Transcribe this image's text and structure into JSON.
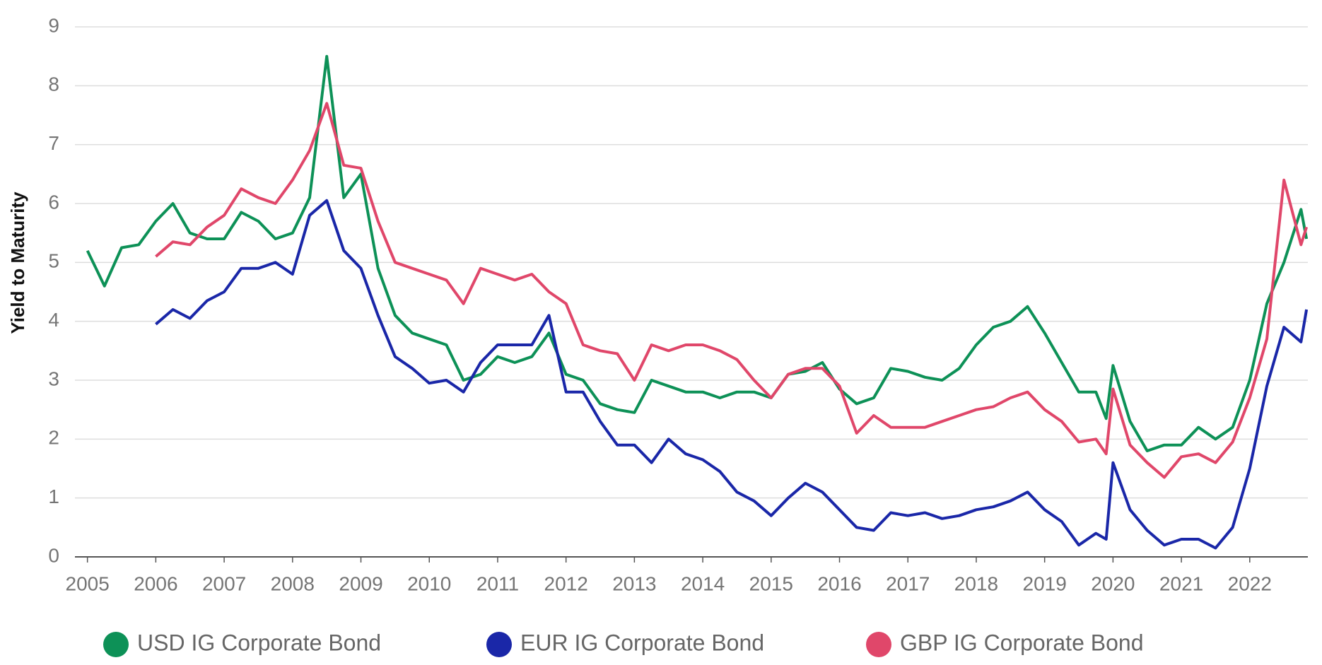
{
  "chart_data": {
    "type": "line",
    "y_label": "Yield to Maturity",
    "x": [
      2005,
      2005.25,
      2005.5,
      2005.75,
      2006,
      2006.25,
      2006.5,
      2006.75,
      2007,
      2007.25,
      2007.5,
      2007.75,
      2008,
      2008.25,
      2008.5,
      2008.75,
      2009,
      2009.25,
      2009.5,
      2009.75,
      2010,
      2010.25,
      2010.5,
      2010.75,
      2011,
      2011.25,
      2011.5,
      2011.75,
      2012,
      2012.25,
      2012.5,
      2012.75,
      2013,
      2013.25,
      2013.5,
      2013.75,
      2014,
      2014.25,
      2014.5,
      2014.75,
      2015,
      2015.25,
      2015.5,
      2015.75,
      2016,
      2016.25,
      2016.5,
      2016.75,
      2017,
      2017.25,
      2017.5,
      2017.75,
      2018,
      2018.25,
      2018.5,
      2018.75,
      2019,
      2019.25,
      2019.5,
      2019.75,
      2019.9,
      2020,
      2020.25,
      2020.5,
      2020.75,
      2021,
      2021.25,
      2021.5,
      2021.75,
      2022,
      2022.25,
      2022.5,
      2022.75,
      2022.83
    ],
    "series": [
      {
        "name": "USD IG Corporate Bond",
        "color": "#0d9157",
        "values": [
          5.2,
          4.6,
          5.25,
          5.3,
          5.7,
          6.0,
          5.5,
          5.4,
          5.4,
          5.85,
          5.7,
          5.4,
          5.5,
          6.1,
          8.5,
          6.1,
          6.5,
          4.9,
          4.1,
          3.8,
          3.7,
          3.6,
          3.0,
          3.1,
          3.4,
          3.3,
          3.4,
          3.8,
          3.1,
          3.0,
          2.6,
          2.5,
          2.45,
          3.0,
          2.9,
          2.8,
          2.8,
          2.7,
          2.8,
          2.8,
          2.7,
          3.1,
          3.15,
          3.3,
          2.85,
          2.6,
          2.7,
          3.2,
          3.15,
          3.05,
          3.0,
          3.2,
          3.6,
          3.9,
          4.0,
          4.25,
          3.8,
          3.3,
          2.8,
          2.8,
          2.35,
          3.25,
          2.3,
          1.8,
          1.9,
          1.9,
          2.2,
          2.0,
          2.2,
          3.0,
          4.3,
          5.0,
          5.9,
          5.4
        ]
      },
      {
        "name": "EUR IG Corporate Bond",
        "color": "#1a27a8",
        "values": [
          null,
          null,
          null,
          null,
          3.95,
          4.2,
          4.05,
          4.35,
          4.5,
          4.9,
          4.9,
          5.0,
          4.8,
          5.8,
          6.05,
          5.2,
          4.9,
          4.1,
          3.4,
          3.2,
          2.95,
          3.0,
          2.8,
          3.3,
          3.6,
          3.6,
          3.6,
          4.1,
          2.8,
          2.8,
          2.3,
          1.9,
          1.9,
          1.6,
          2.0,
          1.75,
          1.65,
          1.45,
          1.1,
          0.95,
          0.7,
          1.0,
          1.25,
          1.1,
          0.8,
          0.5,
          0.45,
          0.75,
          0.7,
          0.75,
          0.65,
          0.7,
          0.8,
          0.85,
          0.95,
          1.1,
          0.8,
          0.6,
          0.2,
          0.4,
          0.3,
          1.6,
          0.8,
          0.45,
          0.2,
          0.3,
          0.3,
          0.15,
          0.5,
          1.5,
          2.9,
          3.9,
          3.65,
          4.2
        ]
      },
      {
        "name": "GBP IG Corporate Bond",
        "color": "#e0476a",
        "values": [
          null,
          null,
          null,
          null,
          5.1,
          5.35,
          5.3,
          5.6,
          5.8,
          6.25,
          6.1,
          6.0,
          6.4,
          6.9,
          7.7,
          6.65,
          6.6,
          5.7,
          5.0,
          4.9,
          4.8,
          4.7,
          4.3,
          4.9,
          4.8,
          4.7,
          4.8,
          4.5,
          4.3,
          3.6,
          3.5,
          3.45,
          3.0,
          3.6,
          3.5,
          3.6,
          3.6,
          3.5,
          3.35,
          3.0,
          2.7,
          3.1,
          3.2,
          3.2,
          2.9,
          2.1,
          2.4,
          2.2,
          2.2,
          2.2,
          2.3,
          2.4,
          2.5,
          2.55,
          2.7,
          2.8,
          2.5,
          2.3,
          1.95,
          2.0,
          1.75,
          2.85,
          1.9,
          1.6,
          1.35,
          1.7,
          1.75,
          1.6,
          1.95,
          2.7,
          3.7,
          6.4,
          5.3,
          5.6
        ]
      }
    ],
    "xlim": [
      2004.9,
      2022.85
    ],
    "xticks": [
      2005,
      2006,
      2007,
      2008,
      2009,
      2010,
      2011,
      2012,
      2013,
      2014,
      2015,
      2016,
      2017,
      2018,
      2019,
      2020,
      2021,
      2022
    ],
    "ylim": [
      0,
      9
    ],
    "yticks": [
      0,
      1,
      2,
      3,
      4,
      5,
      6,
      7,
      8,
      9
    ],
    "grid": true
  }
}
